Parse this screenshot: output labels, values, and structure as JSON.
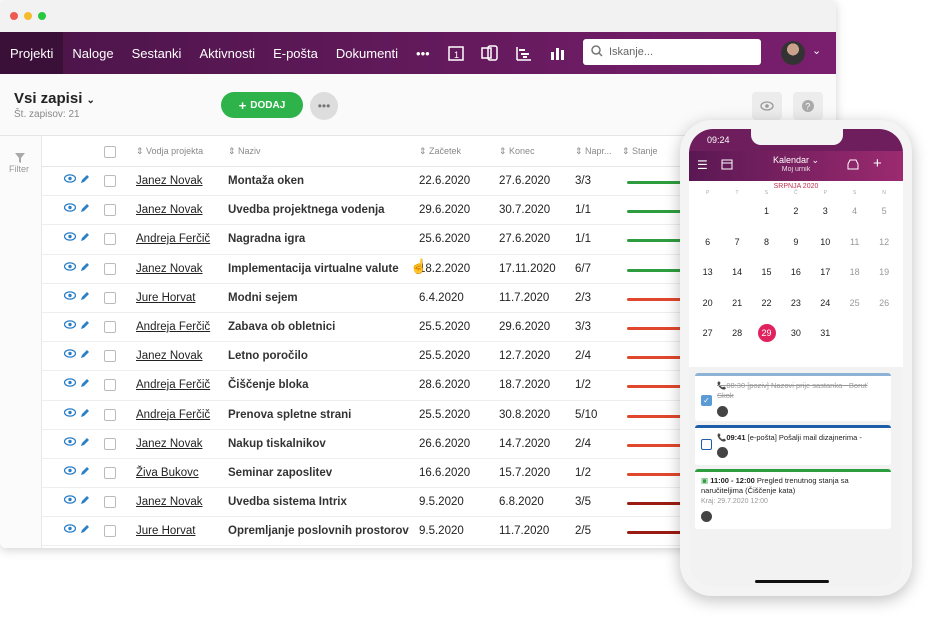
{
  "nav": {
    "items": [
      "Projekti",
      "Naloge",
      "Sestanki",
      "Aktivnosti",
      "E-pošta",
      "Dokumenti"
    ],
    "more": "•••",
    "search_placeholder": "Iskanje..."
  },
  "header": {
    "title": "Vsi zapisi",
    "count": "Št. zapisov: 21",
    "add_label": "DODAJ",
    "filter": "Filter"
  },
  "columns": [
    "Vodja projekta",
    "Naziv",
    "Začetek",
    "Konec",
    "Napr...",
    "Stanje"
  ],
  "rows": [
    {
      "lead": "Janez Novak",
      "name": "Montaža oken",
      "start": "22.6.2020",
      "end": "27.6.2020",
      "prog": "3/3",
      "status": "green"
    },
    {
      "lead": "Janez Novak",
      "name": "Uvedba projektnega vodenja",
      "start": "29.6.2020",
      "end": "30.7.2020",
      "prog": "1/1",
      "status": "green"
    },
    {
      "lead": "Andreja Ferčič",
      "name": "Nagradna igra",
      "start": "25.6.2020",
      "end": "27.6.2020",
      "prog": "1/1",
      "status": "green"
    },
    {
      "lead": "Janez Novak",
      "name": "Implementacija virtualne valute",
      "start": "18.2.2020",
      "end": "17.11.2020",
      "prog": "6/7",
      "status": "green"
    },
    {
      "lead": "Jure Horvat",
      "name": "Modni sejem",
      "start": "6.4.2020",
      "end": "11.7.2020",
      "prog": "2/3",
      "status": "red"
    },
    {
      "lead": "Andreja Ferčič",
      "name": "Zabava ob obletnici",
      "start": "25.5.2020",
      "end": "29.6.2020",
      "prog": "3/3",
      "status": "red"
    },
    {
      "lead": "Janez Novak",
      "name": "Letno poročilo",
      "start": "25.5.2020",
      "end": "12.7.2020",
      "prog": "2/4",
      "status": "red"
    },
    {
      "lead": "Andreja Ferčič",
      "name": "Čiščenje bloka",
      "start": "28.6.2020",
      "end": "18.7.2020",
      "prog": "1/2",
      "status": "red"
    },
    {
      "lead": "Andreja Ferčič",
      "name": "Prenova spletne strani",
      "start": "25.5.2020",
      "end": "30.8.2020",
      "prog": "5/10",
      "status": "red"
    },
    {
      "lead": "Janez Novak",
      "name": "Nakup tiskalnikov",
      "start": "26.6.2020",
      "end": "14.7.2020",
      "prog": "2/4",
      "status": "red"
    },
    {
      "lead": "Živa Bukovc",
      "name": "Seminar zaposlitev",
      "start": "16.6.2020",
      "end": "15.7.2020",
      "prog": "1/2",
      "status": "red"
    },
    {
      "lead": "Janez Novak",
      "name": "Uvedba sistema Intrix",
      "start": "9.5.2020",
      "end": "6.8.2020",
      "prog": "3/5",
      "status": "darkred"
    },
    {
      "lead": "Jure Horvat",
      "name": "Opremljanje poslovnih prostorov",
      "start": "9.5.2020",
      "end": "11.7.2020",
      "prog": "2/5",
      "status": "darkred"
    }
  ],
  "colors": {
    "green": "#2e9d3f",
    "red": "#e0472d",
    "darkred": "#9a1b12"
  },
  "phone": {
    "time": "09:24",
    "title": "Kalendar",
    "subtitle": "Moj urnik",
    "month": "SRPNJA 2020",
    "weekdays": [
      "P",
      "T",
      "S",
      "Č",
      "P",
      "S",
      "N"
    ],
    "weeks": [
      [
        "",
        "",
        "1",
        "2",
        "3",
        "4",
        "5"
      ],
      [
        "6",
        "7",
        "8",
        "9",
        "10",
        "11",
        "12"
      ],
      [
        "13",
        "14",
        "15",
        "16",
        "17",
        "18",
        "19"
      ],
      [
        "20",
        "21",
        "22",
        "23",
        "24",
        "25",
        "26"
      ],
      [
        "27",
        "28",
        "29",
        "30",
        "31",
        "",
        ""
      ]
    ],
    "today": "29",
    "events": [
      {
        "time": "08:30",
        "text": "[poziv] Nazovi prije sastanka - Boruť Skok",
        "done": true
      },
      {
        "time": "09:41",
        "text": "[e-pošta] Pošalji mail dizajnerima -",
        "done": false
      },
      {
        "time": "11:00 - 12:00",
        "text": "Pregled trenutnog stanja sa naručiteljima (Čiščenje kata)",
        "sub": "Kraj: 29.7.2020 12:00"
      }
    ]
  }
}
